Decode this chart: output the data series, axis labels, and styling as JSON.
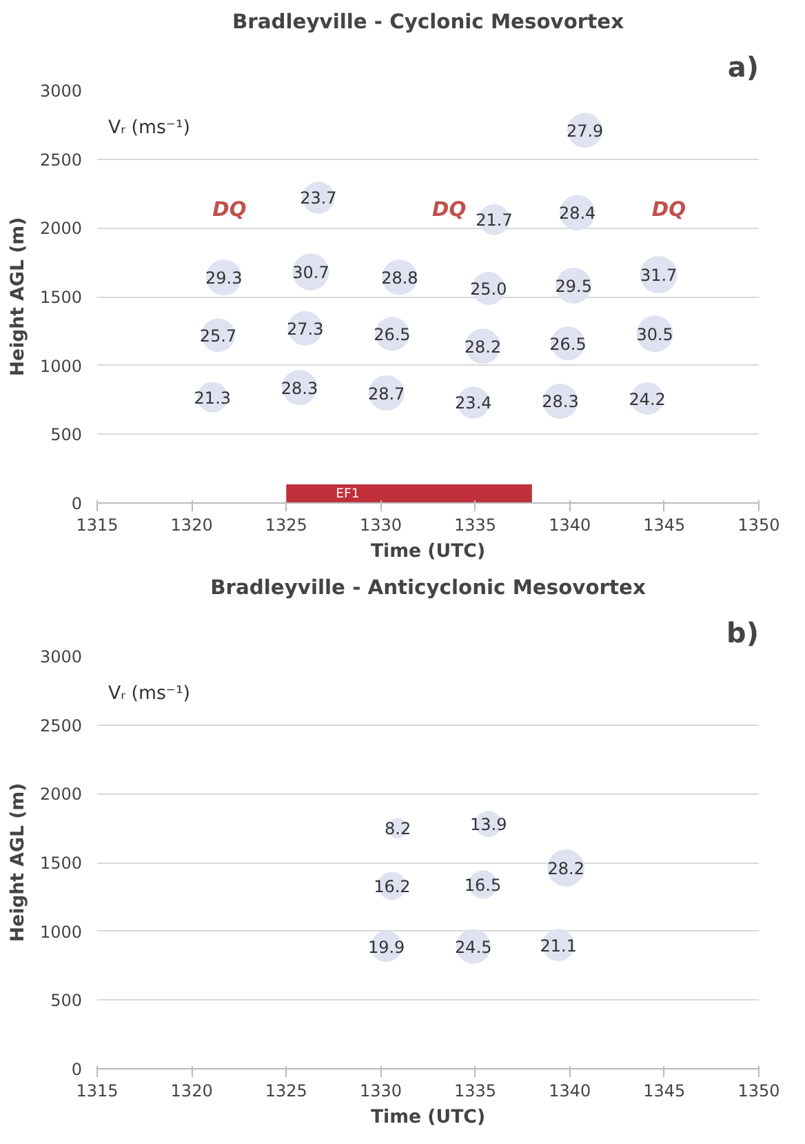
{
  "chart_data": [
    {
      "type": "bubble",
      "title": "Bradleyville - Cyclonic Mesovortex",
      "xlabel": "Time (UTC)",
      "ylabel": "Height AGL (m)",
      "x": [
        1340.8,
        1326.7,
        1336.0,
        1340.4,
        1321.7,
        1326.3,
        1331.0,
        1335.7,
        1340.2,
        1344.7,
        1321.4,
        1326.0,
        1330.6,
        1335.4,
        1339.9,
        1344.5,
        1321.1,
        1325.7,
        1330.3,
        1334.9,
        1339.5,
        1344.1
      ],
      "values": [
        2710,
        2220,
        2060,
        2110,
        1640,
        1680,
        1640,
        1560,
        1580,
        1660,
        1220,
        1270,
        1230,
        1140,
        1160,
        1230,
        770,
        840,
        800,
        730,
        740,
        760
      ],
      "sizes": [
        27.9,
        23.7,
        21.7,
        28.4,
        29.3,
        30.7,
        28.8,
        25.0,
        29.5,
        31.7,
        25.7,
        27.3,
        26.5,
        28.2,
        26.5,
        30.5,
        21.3,
        28.3,
        28.7,
        23.4,
        28.3,
        24.2
      ],
      "value_labels": [
        "27.9",
        "23.7",
        "21.7",
        "28.4",
        "29.3",
        "30.7",
        "28.8",
        "25.0",
        "29.5",
        "31.7",
        "25.7",
        "27.3",
        "26.5",
        "28.2",
        "26.5",
        "30.5",
        "21.3",
        "28.3",
        "28.7",
        "23.4",
        "28.3",
        "24.2"
      ],
      "color": "#dfe2f0",
      "xlim": [
        1315,
        1350
      ],
      "xticks": [
        1315,
        1320,
        1325,
        1330,
        1335,
        1340,
        1345,
        1350
      ],
      "ylim": [
        0,
        3000
      ],
      "yticks": [
        0,
        500,
        1000,
        1500,
        2000,
        2500,
        3000
      ],
      "grid": "y",
      "bands": [
        {
          "axis": "x",
          "from": 1325,
          "to": 1338,
          "label": "EF1",
          "color": "#c0303a"
        }
      ],
      "annotations": [
        "a)",
        "Vᵣ (ms⁻¹)",
        "DQ",
        "DQ",
        "DQ"
      ]
    },
    {
      "type": "bubble",
      "title": "Bradleyville - Anticyclonic Mesovortex",
      "xlabel": "Time (UTC)",
      "ylabel": "Height AGL (m)",
      "x": [
        1330.9,
        1335.7,
        1339.8,
        1330.6,
        1335.4,
        1330.3,
        1334.9,
        1339.4
      ],
      "values": [
        1750,
        1780,
        1460,
        1330,
        1340,
        890,
        890,
        900
      ],
      "sizes": [
        8.2,
        13.9,
        28.2,
        16.2,
        16.5,
        19.9,
        24.5,
        21.1
      ],
      "value_labels": [
        "8.2",
        "13.9",
        "28.2",
        "16.2",
        "16.5",
        "19.9",
        "24.5",
        "21.1"
      ],
      "color": "#dfe2f0",
      "xlim": [
        1315,
        1350
      ],
      "xticks": [
        1315,
        1320,
        1325,
        1330,
        1335,
        1340,
        1345,
        1350
      ],
      "ylim": [
        0,
        3000
      ],
      "yticks": [
        0,
        500,
        1000,
        1500,
        2000,
        2500,
        3000
      ],
      "grid": "y",
      "annotations": [
        "b)",
        "Vᵣ (ms⁻¹)"
      ]
    }
  ]
}
